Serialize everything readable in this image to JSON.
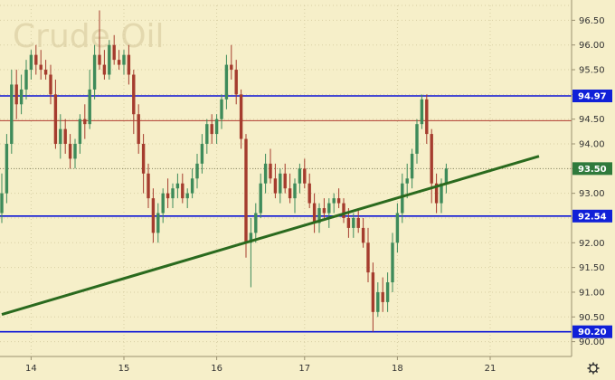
{
  "chart_data": {
    "type": "candlestick",
    "title": "Crude Oil",
    "colors": {
      "background": "#f6efc9",
      "up": "#3e8b5a",
      "down": "#a53c2e",
      "support_resistance": "#0b14d6",
      "mid_line": "#b03a2e",
      "trendline": "#2a6a1e",
      "tag_blue": "#1020d8",
      "tag_green": "#2f7a3c"
    },
    "ylim": [
      89.7,
      96.8
    ],
    "y_ticks": [
      "90.00",
      "90.50",
      "91.00",
      "91.50",
      "92.00",
      "92.50",
      "93.00",
      "93.50",
      "94.00",
      "94.50",
      "95.00",
      "95.50",
      "96.00",
      "96.50"
    ],
    "x_ticks": [
      {
        "label": "14",
        "index": 6
      },
      {
        "label": "15",
        "index": 25
      },
      {
        "label": "16",
        "index": 44
      },
      {
        "label": "17",
        "index": 62
      },
      {
        "label": "18",
        "index": 81
      },
      {
        "label": "21",
        "index": 100
      }
    ],
    "horizontal_lines": [
      {
        "value": 94.97,
        "label": "94.97",
        "color": "#0b14d6",
        "tag": true
      },
      {
        "value": 92.54,
        "label": "92.54",
        "color": "#0b14d6",
        "tag": true
      },
      {
        "value": 90.2,
        "label": "90.20",
        "color": "#0b14d6",
        "tag": true
      },
      {
        "value": 94.47,
        "label": "",
        "color": "#b03a2e",
        "tag": false
      }
    ],
    "current_price": {
      "value": 93.5,
      "label": "93.50"
    },
    "trendline": {
      "from": {
        "index": 0,
        "value": 90.55
      },
      "to": {
        "index": 110,
        "value": 93.75
      }
    },
    "candles": [
      [
        92.6,
        93.4,
        92.4,
        93.0
      ],
      [
        93.0,
        94.2,
        92.8,
        94.0
      ],
      [
        94.0,
        95.5,
        93.8,
        95.2
      ],
      [
        95.2,
        95.5,
        94.5,
        94.8
      ],
      [
        94.8,
        95.4,
        94.6,
        95.1
      ],
      [
        95.1,
        95.7,
        94.9,
        95.5
      ],
      [
        95.5,
        95.9,
        95.3,
        95.8
      ],
      [
        95.8,
        96.0,
        95.4,
        95.6
      ],
      [
        95.6,
        95.9,
        95.3,
        95.5
      ],
      [
        95.5,
        95.7,
        95.3,
        95.4
      ],
      [
        95.4,
        95.6,
        94.8,
        95.0
      ],
      [
        95.0,
        95.3,
        93.9,
        94.0
      ],
      [
        94.0,
        94.6,
        93.7,
        94.3
      ],
      [
        94.3,
        94.5,
        93.8,
        94.0
      ],
      [
        94.0,
        94.2,
        93.5,
        93.7
      ],
      [
        93.7,
        94.1,
        93.5,
        94.0
      ],
      [
        94.0,
        94.6,
        93.8,
        94.5
      ],
      [
        94.5,
        94.8,
        94.1,
        94.4
      ],
      [
        94.4,
        95.5,
        94.3,
        95.1
      ],
      [
        95.1,
        96.0,
        94.9,
        95.8
      ],
      [
        95.8,
        96.7,
        95.5,
        95.6
      ],
      [
        95.6,
        95.9,
        95.3,
        95.4
      ],
      [
        95.4,
        96.1,
        95.3,
        96.0
      ],
      [
        96.0,
        96.2,
        95.6,
        95.7
      ],
      [
        95.7,
        95.9,
        95.5,
        95.6
      ],
      [
        95.6,
        95.9,
        95.4,
        95.8
      ],
      [
        95.8,
        96.0,
        95.2,
        95.4
      ],
      [
        95.4,
        95.5,
        94.2,
        94.6
      ],
      [
        94.6,
        94.8,
        93.8,
        94.0
      ],
      [
        94.0,
        94.2,
        93.0,
        93.4
      ],
      [
        93.4,
        93.6,
        92.7,
        92.9
      ],
      [
        92.9,
        93.1,
        92.0,
        92.2
      ],
      [
        92.2,
        92.8,
        92.0,
        92.6
      ],
      [
        92.6,
        93.1,
        92.4,
        93.0
      ],
      [
        93.0,
        93.3,
        92.7,
        92.9
      ],
      [
        92.9,
        93.2,
        92.7,
        93.1
      ],
      [
        93.1,
        93.4,
        92.9,
        93.2
      ],
      [
        93.2,
        93.4,
        92.8,
        92.9
      ],
      [
        92.9,
        93.1,
        92.7,
        93.0
      ],
      [
        93.0,
        93.5,
        92.9,
        93.3
      ],
      [
        93.3,
        93.8,
        93.1,
        93.6
      ],
      [
        93.6,
        94.2,
        93.4,
        94.0
      ],
      [
        94.0,
        94.5,
        93.8,
        94.4
      ],
      [
        94.4,
        94.6,
        94.0,
        94.2
      ],
      [
        94.2,
        94.6,
        94.0,
        94.5
      ],
      [
        94.5,
        95.0,
        94.3,
        94.9
      ],
      [
        94.9,
        95.8,
        94.7,
        95.6
      ],
      [
        95.6,
        96.0,
        95.3,
        95.5
      ],
      [
        95.5,
        95.7,
        94.8,
        95.0
      ],
      [
        95.0,
        95.1,
        93.9,
        94.1
      ],
      [
        94.1,
        94.2,
        91.7,
        92.0
      ],
      [
        92.0,
        92.5,
        91.1,
        92.2
      ],
      [
        92.2,
        92.8,
        92.0,
        92.6
      ],
      [
        92.6,
        93.4,
        92.5,
        93.2
      ],
      [
        93.2,
        93.8,
        93.0,
        93.6
      ],
      [
        93.6,
        93.9,
        93.2,
        93.3
      ],
      [
        93.3,
        93.6,
        92.9,
        93.0
      ],
      [
        93.0,
        93.5,
        92.8,
        93.4
      ],
      [
        93.4,
        93.6,
        93.0,
        93.1
      ],
      [
        93.1,
        93.4,
        92.8,
        92.9
      ],
      [
        92.9,
        93.3,
        92.6,
        93.2
      ],
      [
        93.2,
        93.6,
        93.0,
        93.5
      ],
      [
        93.5,
        93.7,
        93.1,
        93.2
      ],
      [
        93.2,
        93.4,
        92.7,
        92.8
      ],
      [
        92.8,
        93.0,
        92.2,
        92.4
      ],
      [
        92.4,
        92.8,
        92.2,
        92.7
      ],
      [
        92.7,
        92.9,
        92.5,
        92.6
      ],
      [
        92.6,
        92.9,
        92.3,
        92.8
      ],
      [
        92.8,
        93.0,
        92.6,
        92.9
      ],
      [
        92.9,
        93.1,
        92.7,
        92.8
      ],
      [
        92.8,
        92.9,
        92.4,
        92.5
      ],
      [
        92.5,
        92.7,
        92.1,
        92.3
      ],
      [
        92.3,
        92.6,
        92.1,
        92.5
      ],
      [
        92.5,
        92.7,
        92.2,
        92.3
      ],
      [
        92.3,
        92.5,
        91.9,
        92.0
      ],
      [
        92.0,
        92.3,
        91.2,
        91.4
      ],
      [
        91.4,
        91.6,
        90.2,
        90.6
      ],
      [
        90.6,
        91.2,
        90.5,
        91.0
      ],
      [
        91.0,
        91.3,
        90.6,
        90.8
      ],
      [
        90.8,
        91.4,
        90.6,
        91.2
      ],
      [
        91.2,
        92.2,
        91.0,
        92.0
      ],
      [
        92.0,
        92.8,
        91.8,
        92.6
      ],
      [
        92.6,
        93.4,
        92.4,
        93.2
      ],
      [
        93.2,
        93.6,
        92.9,
        93.3
      ],
      [
        93.3,
        93.9,
        93.1,
        93.8
      ],
      [
        93.8,
        94.5,
        93.6,
        94.4
      ],
      [
        94.4,
        95.0,
        94.3,
        94.9
      ],
      [
        94.9,
        95.0,
        94.0,
        94.2
      ],
      [
        94.2,
        94.3,
        92.8,
        93.2
      ],
      [
        93.2,
        93.4,
        92.6,
        92.8
      ],
      [
        92.8,
        93.3,
        92.6,
        93.2
      ],
      [
        93.2,
        93.6,
        93.0,
        93.5
      ]
    ]
  }
}
